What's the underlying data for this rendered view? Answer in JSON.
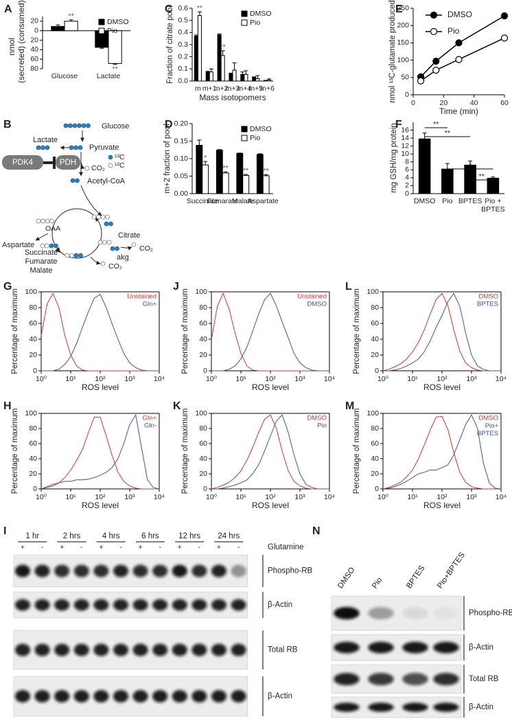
{
  "chart_data": [
    {
      "panel": "A",
      "type": "bar",
      "ylabel": "nmol",
      "ylabel_top": "(consumed)",
      "ylabel_bottom": "(secreted)",
      "categories": [
        "Glucose",
        "Lactate"
      ],
      "series": [
        {
          "name": "DMSO",
          "color": "#000000",
          "values": [
            9,
            -35
          ],
          "errors": [
            3,
            2
          ]
        },
        {
          "name": "Pio",
          "color": "#ffffff",
          "values": [
            20,
            -69
          ],
          "errors": [
            3,
            2
          ],
          "stars": [
            "**",
            "**"
          ]
        }
      ],
      "ylim": [
        -80,
        30
      ],
      "yticks": [
        20,
        0,
        {
          "value": -20,
          "label": "20"
        },
        {
          "value": -40,
          "label": "40"
        },
        {
          "value": -60,
          "label": "60"
        },
        {
          "value": -80,
          "label": "80"
        }
      ],
      "legend": "upper right"
    },
    {
      "panel": "C",
      "type": "bar",
      "ylabel": "Fraction of citrate pool",
      "xlabel": "Mass isotopomers",
      "categories": [
        "m",
        "m+1",
        "m+2",
        "m+3",
        "m+4",
        "m+5",
        "m+6"
      ],
      "series": [
        {
          "name": "DMSO",
          "color": "#000000",
          "values": [
            0.37,
            0.075,
            0.38,
            0.06,
            0.055,
            0.03,
            0.003
          ],
          "errors": [
            0.01,
            0.005,
            0.008,
            0.005,
            0.02,
            0.005,
            0.003
          ]
        },
        {
          "name": "Pio",
          "color": "#ffffff",
          "values": [
            0.54,
            0.075,
            0.21,
            0.09,
            0.055,
            0.02,
            0.008
          ],
          "errors": [
            0.03,
            0.025,
            0.04,
            0.06,
            0.03,
            0.025,
            0.01
          ],
          "stars": [
            "**",
            null,
            "**",
            null,
            null,
            null,
            null
          ]
        }
      ],
      "ylim": [
        0,
        0.6
      ],
      "yticks": [
        {
          "value": 0,
          "label": "0.0"
        },
        0.1,
        0.2,
        0.3,
        0.4,
        0.5,
        0.6
      ],
      "legend": "upper right"
    },
    {
      "panel": "E",
      "type": "line",
      "markers": true,
      "ylabel": "nmol ¹³C-glutamate produced",
      "xlabel": "Time (min)",
      "x": [
        5,
        15,
        30,
        60
      ],
      "series": [
        {
          "name": "DMSO",
          "color": "#000000",
          "marker_fill": "#000000",
          "values": [
            52,
            97,
            150,
            228
          ]
        },
        {
          "name": "Pio",
          "color": "#000000",
          "marker_fill": "#ffffff",
          "values": [
            40,
            71,
            102,
            164
          ]
        }
      ],
      "xlim": [
        0,
        60
      ],
      "xticks": [
        0,
        20,
        40,
        60
      ],
      "ylim": [
        0,
        250
      ],
      "yticks": [
        0,
        50,
        100,
        150,
        200,
        250
      ],
      "legend": "upper left"
    },
    {
      "panel": "D",
      "type": "bar",
      "ylabel": "m+2 fraction of pool",
      "categories": [
        "Succinate",
        "Fumarate",
        "Malate",
        "Aspartate"
      ],
      "series": [
        {
          "name": "DMSO",
          "color": "#000000",
          "values": [
            0.138,
            0.124,
            0.115,
            0.112
          ],
          "errors": [
            0.015,
            0.002,
            0.001,
            0.002
          ]
        },
        {
          "name": "Pio",
          "color": "#ffffff",
          "values": [
            0.082,
            0.059,
            0.052,
            0.051
          ],
          "errors": [
            0.01,
            0.003,
            0.003,
            0.003
          ],
          "stars": [
            "*",
            "**",
            "**",
            "**"
          ]
        }
      ],
      "ylim": [
        0,
        0.2
      ],
      "yticks": [
        {
          "value": 0,
          "label": "0.00"
        },
        {
          "value": 0.05,
          "label": "0.05"
        },
        {
          "value": 0.1,
          "label": "0.10"
        },
        {
          "value": 0.15,
          "label": "0.15"
        },
        {
          "value": 0.2,
          "label": "0.20"
        }
      ],
      "legend": "upper right"
    },
    {
      "panel": "F",
      "type": "bar",
      "ylabel": "mg GSH/mg protein",
      "categories": [
        "DMSO",
        "Pio",
        "BPTES",
        "Pio +\nBPTES"
      ],
      "values": [
        13.8,
        6.2,
        7.2,
        3.9
      ],
      "errors": [
        1.5,
        1.4,
        1.0,
        0.3
      ],
      "color": "#000000",
      "comparisons": [
        {
          "groups": [
            0,
            1
          ],
          "label": "**"
        },
        {
          "groups": [
            0,
            2
          ],
          "label": "**"
        },
        {
          "groups": [
            1,
            3
          ],
          "label": "*"
        },
        {
          "groups": [
            2,
            3
          ],
          "label": "**"
        }
      ],
      "ylim": [
        0,
        18
      ],
      "yticks": [
        0,
        2,
        4,
        6,
        8,
        10,
        12,
        14,
        16
      ]
    },
    {
      "panel": "G",
      "type": "line",
      "xscale": "log",
      "ylabel": "Percentage of maximum",
      "xlabel": "ROS level",
      "x": [
        1,
        1.6,
        2.5,
        4,
        6.3,
        10,
        16,
        25,
        40,
        63,
        100,
        160,
        250,
        400,
        630,
        1000,
        1600,
        2500,
        4000,
        6300,
        10000
      ],
      "series": [
        {
          "name": "Unstained",
          "color": "#e0302c",
          "values": [
            45,
            85,
            98,
            80,
            45,
            20,
            6,
            1,
            0,
            0,
            0,
            0,
            0,
            0,
            0,
            0,
            0,
            0,
            0,
            0,
            0
          ]
        },
        {
          "name": "Gln+",
          "color": "#3f51a5",
          "values": [
            0,
            0,
            0,
            2,
            8,
            18,
            35,
            55,
            75,
            92,
            97,
            80,
            60,
            40,
            22,
            10,
            4,
            1,
            0,
            0,
            0
          ]
        }
      ],
      "xlim": [
        1,
        10000
      ],
      "xticks": [
        {
          "value": 1,
          "label": "10⁰"
        },
        {
          "value": 10,
          "label": "10¹"
        },
        {
          "value": 100,
          "label": "10²"
        },
        {
          "value": 1000,
          "label": "10³"
        },
        {
          "value": 10000,
          "label": "10⁴"
        }
      ],
      "ylim": [
        0,
        100
      ],
      "yticks": [
        0,
        20,
        40,
        60,
        80,
        100
      ],
      "legend": "upper right"
    },
    {
      "panel": "J",
      "type": "line",
      "xscale": "log",
      "ylabel": "Percentage of maximum",
      "xlabel": "ROS level",
      "x": [
        1,
        1.6,
        2.5,
        4,
        6.3,
        10,
        16,
        25,
        40,
        63,
        100,
        160,
        250,
        400,
        630,
        1000,
        1600,
        2500,
        4000,
        6300,
        10000
      ],
      "series": [
        {
          "name": "Unstained",
          "color": "#e0302c",
          "values": [
            40,
            82,
            98,
            78,
            48,
            22,
            6,
            1,
            0,
            0,
            0,
            0,
            0,
            0,
            0,
            0,
            0,
            0,
            0,
            0,
            0
          ]
        },
        {
          "name": "DMSO",
          "color": "#3f51a5",
          "values": [
            0,
            0,
            0,
            2,
            6,
            15,
            30,
            50,
            72,
            90,
            98,
            82,
            62,
            42,
            22,
            10,
            4,
            1,
            0,
            0,
            0
          ]
        }
      ],
      "xlim": [
        1,
        10000
      ],
      "xticks": [
        {
          "value": 1,
          "label": "10⁰"
        },
        {
          "value": 10,
          "label": "10¹"
        },
        {
          "value": 100,
          "label": "10²"
        },
        {
          "value": 1000,
          "label": "10³"
        },
        {
          "value": 10000,
          "label": "10⁴"
        }
      ],
      "ylim": [
        0,
        100
      ],
      "yticks": [
        0,
        20,
        40,
        60,
        80,
        100
      ],
      "legend": "upper right"
    },
    {
      "panel": "L",
      "type": "line",
      "xscale": "log",
      "ylabel": "Percentage of maximum",
      "xlabel": "ROS level",
      "x": [
        1,
        1.6,
        2.5,
        4,
        6.3,
        10,
        16,
        25,
        40,
        63,
        100,
        160,
        250,
        400,
        630,
        1000,
        1600,
        2500,
        4000,
        6300,
        10000
      ],
      "series": [
        {
          "name": "DMSO",
          "color": "#e0302c",
          "values": [
            0,
            2,
            5,
            9,
            15,
            24,
            36,
            52,
            72,
            90,
            98,
            82,
            52,
            25,
            10,
            4,
            1,
            0,
            0,
            0,
            0
          ]
        },
        {
          "name": "BPTES",
          "color": "#3f51a5",
          "values": [
            0,
            0,
            1,
            3,
            6,
            10,
            15,
            24,
            38,
            55,
            70,
            88,
            98,
            82,
            48,
            20,
            6,
            2,
            0,
            0,
            0
          ]
        }
      ],
      "xlim": [
        1,
        10000
      ],
      "xticks": [
        {
          "value": 1,
          "label": "10⁰"
        },
        {
          "value": 10,
          "label": "10¹"
        },
        {
          "value": 100,
          "label": "10²"
        },
        {
          "value": 1000,
          "label": "10³"
        },
        {
          "value": 10000,
          "label": "10⁴"
        }
      ],
      "ylim": [
        0,
        100
      ],
      "yticks": [
        0,
        20,
        40,
        60,
        80,
        100
      ],
      "legend": "upper right"
    },
    {
      "panel": "H",
      "type": "line",
      "xscale": "log",
      "ylabel": "Percentage of maximum",
      "xlabel": "ROS level",
      "x": [
        1,
        1.6,
        2.5,
        4,
        6.3,
        10,
        16,
        25,
        40,
        63,
        100,
        160,
        250,
        400,
        630,
        1000,
        1600,
        2500,
        4000,
        6300,
        10000
      ],
      "series": [
        {
          "name": "Gln+",
          "color": "#e0302c",
          "values": [
            0,
            2,
            4,
            8,
            15,
            25,
            38,
            52,
            75,
            95,
            95,
            70,
            45,
            22,
            10,
            4,
            1,
            0,
            0,
            0,
            0
          ]
        },
        {
          "name": "Gln-",
          "color": "#3f51a5",
          "values": [
            0,
            3,
            6,
            8,
            10,
            10,
            12,
            12,
            13,
            15,
            18,
            22,
            28,
            40,
            60,
            85,
            98,
            55,
            12,
            2,
            0
          ]
        }
      ],
      "xlim": [
        1,
        10000
      ],
      "xticks": [
        {
          "value": 1,
          "label": "10⁰"
        },
        {
          "value": 10,
          "label": "10¹"
        },
        {
          "value": 100,
          "label": "10²"
        },
        {
          "value": 1000,
          "label": "10³"
        },
        {
          "value": 10000,
          "label": "10⁴"
        }
      ],
      "ylim": [
        0,
        100
      ],
      "yticks": [
        0,
        20,
        40,
        60,
        80,
        100
      ],
      "legend": "upper right"
    },
    {
      "panel": "K",
      "type": "line",
      "xscale": "log",
      "ylabel": "Percentage of maximum",
      "xlabel": "ROS level",
      "x": [
        1,
        1.6,
        2.5,
        4,
        6.3,
        10,
        16,
        25,
        40,
        63,
        100,
        160,
        250,
        400,
        630,
        1000,
        1600,
        2500,
        4000,
        6300,
        10000
      ],
      "series": [
        {
          "name": "DMSO",
          "color": "#e0302c",
          "values": [
            0,
            2,
            5,
            9,
            15,
            24,
            38,
            55,
            75,
            92,
            98,
            80,
            50,
            24,
            10,
            4,
            1,
            0,
            0,
            0,
            0
          ]
        },
        {
          "name": "Pio",
          "color": "#3f51a5",
          "values": [
            0,
            0,
            1,
            3,
            5,
            8,
            12,
            20,
            32,
            50,
            70,
            90,
            98,
            75,
            45,
            20,
            6,
            2,
            0,
            0,
            0
          ]
        }
      ],
      "xlim": [
        1,
        10000
      ],
      "xticks": [
        {
          "value": 1,
          "label": "10⁰"
        },
        {
          "value": 10,
          "label": "10¹"
        },
        {
          "value": 100,
          "label": "10²"
        },
        {
          "value": 1000,
          "label": "10³"
        },
        {
          "value": 10000,
          "label": "10⁴"
        }
      ],
      "ylim": [
        0,
        100
      ],
      "yticks": [
        0,
        20,
        40,
        60,
        80,
        100
      ],
      "legend": "upper right"
    },
    {
      "panel": "M",
      "type": "line",
      "xscale": "log",
      "ylabel": "Percentage of maximum",
      "xlabel": "ROS level",
      "x": [
        1,
        1.6,
        2.5,
        4,
        6.3,
        10,
        16,
        25,
        40,
        63,
        100,
        160,
        250,
        400,
        630,
        1000,
        1600,
        2500,
        4000,
        6300,
        10000
      ],
      "series": [
        {
          "name": "DMSO",
          "color": "#e0302c",
          "values": [
            0,
            2,
            5,
            9,
            16,
            25,
            40,
            58,
            78,
            95,
            96,
            78,
            48,
            22,
            9,
            3,
            1,
            0,
            0,
            0,
            0
          ]
        },
        {
          "name": "Pio+\nBPTES",
          "color": "#3f51a5",
          "values": [
            0,
            1,
            3,
            6,
            10,
            15,
            20,
            22,
            25,
            25,
            28,
            32,
            45,
            65,
            85,
            98,
            80,
            35,
            8,
            1,
            0
          ]
        }
      ],
      "xlim": [
        1,
        10000
      ],
      "xticks": [
        {
          "value": 1,
          "label": "10⁰"
        },
        {
          "value": 10,
          "label": "10¹"
        },
        {
          "value": 100,
          "label": "10²"
        },
        {
          "value": 1000,
          "label": "10³"
        },
        {
          "value": 10000,
          "label": "10⁴"
        }
      ],
      "ylim": [
        0,
        100
      ],
      "yticks": [
        0,
        20,
        40,
        60,
        80,
        100
      ],
      "legend": "upper right"
    }
  ],
  "diagram": {
    "panel": "B",
    "labels": {
      "glucose": "Glucose",
      "lactate": "Lactate",
      "pyruvate": "Pyruvate",
      "c13": "¹³C",
      "c12": "¹²C",
      "pdk4": "PDK4",
      "pdh": "PDH",
      "co2_a": "CO₂",
      "acetyl_coa": "Acetyl-CoA",
      "oaa": "OAA",
      "citrate": "Citrate",
      "co2_b": "CO₂",
      "akg": "akg",
      "aspartate": "Aspartate",
      "succinate": "Succinate",
      "fumarate": "Fumarate",
      "malate": "Malate",
      "co2_c": "CO₂"
    }
  },
  "blot_time": {
    "panel": "I",
    "timepoints": [
      "1 hr",
      "2 hrs",
      "4 hrs",
      "6 hrs",
      "12 hrs",
      "24 hrs"
    ],
    "signs": [
      "+",
      "-"
    ],
    "treatment": "Glutamine",
    "rows": [
      "Phospho-RB",
      "β-Actin",
      "Total RB",
      "β-Actin"
    ]
  },
  "blot_drug": {
    "panel": "N",
    "lanes": [
      "DMSO",
      "Pio",
      "BPTES",
      "Pio+BPTES"
    ],
    "rows": [
      "Phospho-RB",
      "β-Actin",
      "Total RB",
      "β-Actin"
    ]
  }
}
